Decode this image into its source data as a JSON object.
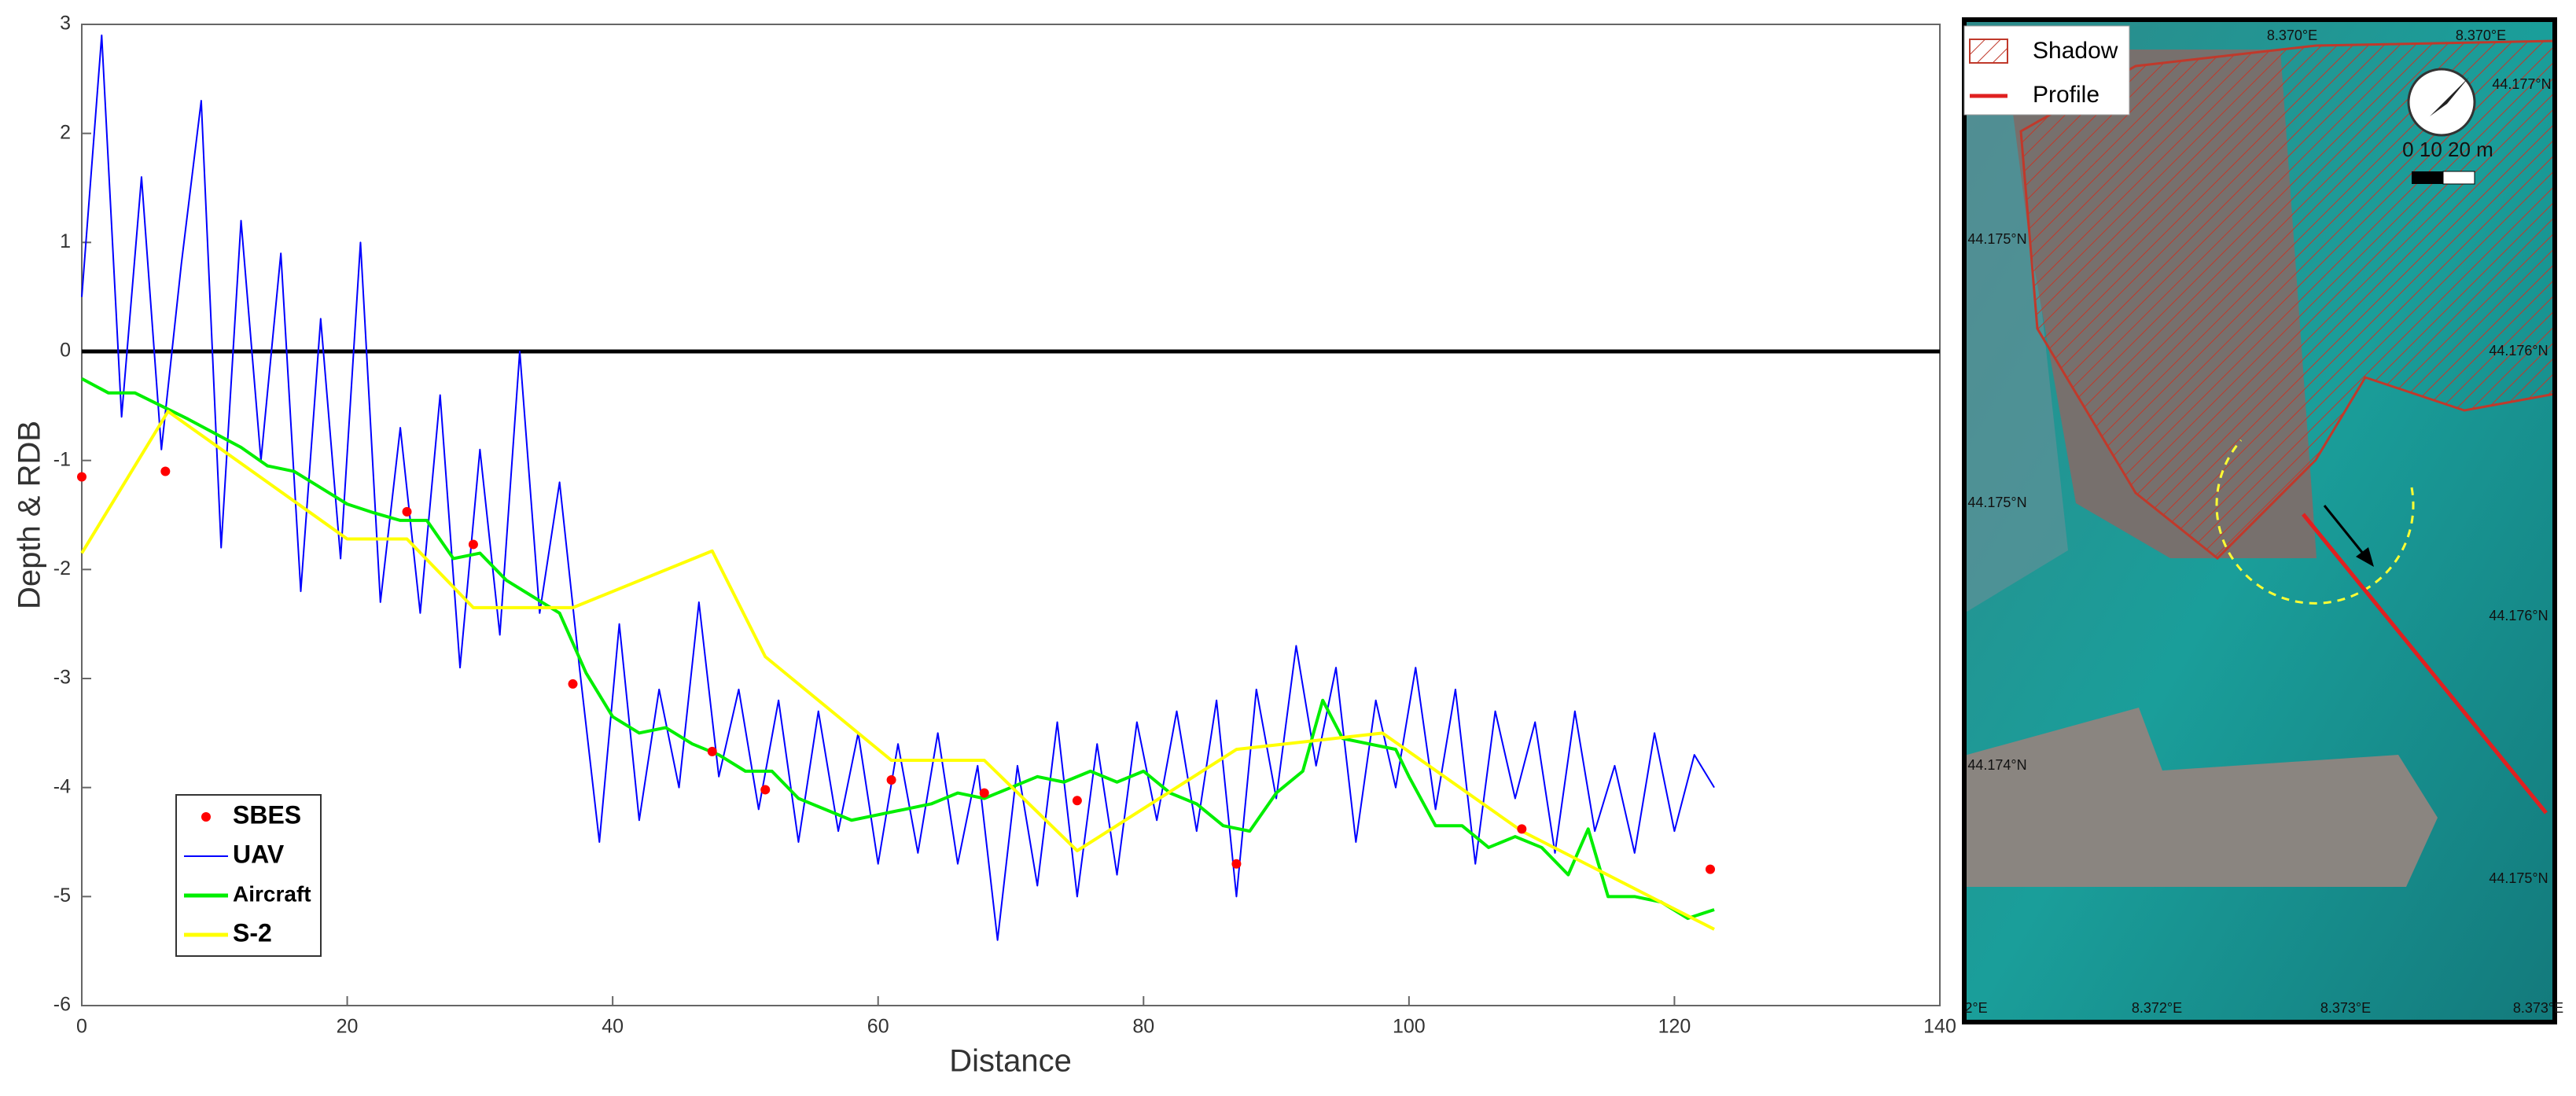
{
  "chart_data": {
    "type": "line",
    "x_label": "Distance",
    "y_label": "Depth & RDB",
    "xlim": [
      0,
      140
    ],
    "xticks": [
      0,
      20,
      40,
      60,
      80,
      100,
      120,
      140
    ],
    "ylim": [
      -6,
      3
    ],
    "yticks": [
      -6,
      -5,
      -4,
      -3,
      -2,
      -1,
      0,
      1,
      2,
      3
    ],
    "reference_line": 0,
    "legend_position": "lower left",
    "series": [
      {
        "name": "SBES",
        "type": "scatter",
        "color": "#ff0000",
        "x": [
          0,
          6.3,
          24.5,
          29.5,
          37,
          47.5,
          51.5,
          61,
          68,
          75,
          87,
          108.5,
          122.7
        ],
        "values": [
          -1.15,
          -1.1,
          -1.47,
          -1.77,
          -3.05,
          -3.67,
          -4.02,
          -3.93,
          -4.05,
          -4.12,
          -4.7,
          -4.38,
          -4.75
        ]
      },
      {
        "name": "UAV",
        "type": "line",
        "color": "#0000ff",
        "x": [
          0,
          1.5,
          3,
          4.5,
          6,
          7.5,
          9,
          10.5,
          12,
          13.5,
          15,
          16.5,
          18,
          19.5,
          21,
          22.5,
          24,
          25.5,
          27,
          28.5,
          30,
          31.5,
          33,
          34.5,
          36,
          37.5,
          39,
          40.5,
          42,
          43.5,
          45,
          46.5,
          48,
          49.5,
          51,
          52.5,
          54,
          55.5,
          57,
          58.5,
          60,
          61.5,
          63,
          64.5,
          66,
          67.5,
          69,
          70.5,
          72,
          73.5,
          75,
          76.5,
          78,
          79.5,
          81,
          82.5,
          84,
          85.5,
          87,
          88.5,
          90,
          91.5,
          93,
          94.5,
          96,
          97.5,
          99,
          100.5,
          102,
          103.5,
          105,
          106.5,
          108,
          109.5,
          111,
          112.5,
          114,
          115.5,
          117,
          118.5,
          120,
          121.5,
          123
        ],
        "values": [
          0.5,
          2.9,
          -0.6,
          1.6,
          -0.9,
          0.8,
          2.3,
          -1.8,
          1.2,
          -1.0,
          0.9,
          -2.2,
          0.3,
          -1.9,
          1.0,
          -2.3,
          -0.7,
          -2.4,
          -0.4,
          -2.9,
          -0.9,
          -2.6,
          0.0,
          -2.4,
          -1.2,
          -2.9,
          -4.5,
          -2.5,
          -4.3,
          -3.1,
          -4.0,
          -2.3,
          -3.9,
          -3.1,
          -4.2,
          -3.2,
          -4.5,
          -3.3,
          -4.4,
          -3.5,
          -4.7,
          -3.6,
          -4.6,
          -3.5,
          -4.7,
          -3.8,
          -5.4,
          -3.8,
          -4.9,
          -3.4,
          -5.0,
          -3.6,
          -4.8,
          -3.4,
          -4.3,
          -3.3,
          -4.4,
          -3.2,
          -5.0,
          -3.1,
          -4.1,
          -2.7,
          -3.8,
          -2.9,
          -4.5,
          -3.2,
          -4.0,
          -2.9,
          -4.2,
          -3.1,
          -4.7,
          -3.3,
          -4.1,
          -3.4,
          -4.6,
          -3.3,
          -4.4,
          -3.8,
          -4.6,
          -3.5,
          -4.4,
          -3.7,
          -4.0
        ]
      },
      {
        "name": "Aircraft",
        "type": "line",
        "color": "#00ee00",
        "x": [
          0,
          2,
          4,
          6,
          8,
          10,
          12,
          14,
          16,
          18,
          20,
          22,
          24,
          26,
          28,
          30,
          32,
          34,
          36,
          38,
          40,
          42,
          44,
          46,
          48,
          50,
          52,
          54,
          56,
          58,
          60,
          62,
          64,
          66,
          68,
          70,
          72,
          74,
          76,
          78,
          80,
          82,
          84,
          86,
          88,
          90,
          92,
          93.5,
          95,
          97,
          99,
          100,
          102,
          104,
          106,
          108,
          110,
          112,
          113.5,
          115,
          117,
          119,
          121,
          123
        ],
        "values": [
          -0.25,
          -0.38,
          -0.38,
          -0.5,
          -0.62,
          -0.75,
          -0.88,
          -1.05,
          -1.1,
          -1.25,
          -1.4,
          -1.48,
          -1.55,
          -1.55,
          -1.9,
          -1.85,
          -2.1,
          -2.25,
          -2.4,
          -2.95,
          -3.35,
          -3.5,
          -3.45,
          -3.6,
          -3.7,
          -3.85,
          -3.85,
          -4.1,
          -4.2,
          -4.3,
          -4.25,
          -4.2,
          -4.15,
          -4.05,
          -4.1,
          -4.0,
          -3.9,
          -3.95,
          -3.85,
          -3.95,
          -3.85,
          -4.05,
          -4.15,
          -4.35,
          -4.4,
          -4.05,
          -3.85,
          -3.2,
          -3.55,
          -3.6,
          -3.65,
          -3.9,
          -4.35,
          -4.35,
          -4.55,
          -4.45,
          -4.55,
          -4.8,
          -4.38,
          -5.0,
          -5.0,
          -5.05,
          -5.2,
          -5.12
        ]
      },
      {
        "name": "S-2",
        "type": "line",
        "color": "#ffff00",
        "x": [
          0,
          6.5,
          20,
          24.5,
          29.5,
          37,
          47.5,
          51.5,
          61,
          68,
          75,
          87,
          98,
          108.5,
          123
        ],
        "values": [
          -1.85,
          -0.55,
          -1.72,
          -1.72,
          -2.35,
          -2.35,
          -1.83,
          -2.8,
          -3.75,
          -3.75,
          -4.58,
          -3.65,
          -3.5,
          -4.4,
          -5.3
        ]
      }
    ]
  },
  "map": {
    "legend": [
      "Shadow",
      "Profile"
    ],
    "scale_label": "0  10  20 m",
    "coordinate_labels": [
      "8.370°E",
      "8.370°E",
      "44.177°N",
      "44.175°N",
      "44.176°N",
      "44.175°N",
      "44.176°N",
      "44.174°N",
      "44.175°N",
      "2°E",
      "8.372°E",
      "8.373°E",
      "8.373°E"
    ]
  }
}
